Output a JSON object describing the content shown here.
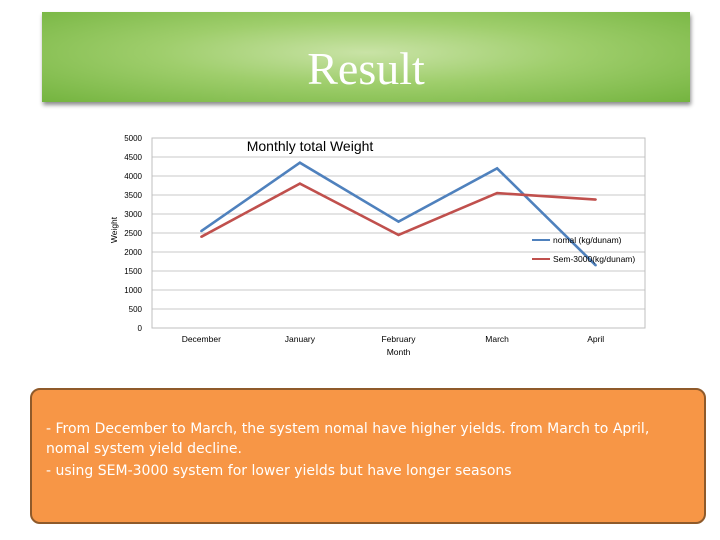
{
  "slide": {
    "title": "Result",
    "notes": [
      " - From December to March, the system nomal have higher yields. from March to April,",
      "nomal system yield decline.",
      "-  using SEM-3000 system for lower yields but have longer seasons"
    ]
  },
  "colors": {
    "banner": "#9fce6c",
    "note_box": "#f79646",
    "series_1": "#4f81bd",
    "series_2": "#c0504d"
  },
  "chart_data": {
    "type": "line",
    "title": "Monthly total Weight",
    "xlabel": "Month",
    "ylabel": "Weight",
    "categories": [
      "December",
      "January",
      "February",
      "March",
      "April"
    ],
    "ylim": [
      0,
      5000
    ],
    "yticks": [
      0,
      500,
      1000,
      1500,
      2000,
      2500,
      3000,
      3500,
      4000,
      4500,
      5000
    ],
    "grid": true,
    "legend": "right",
    "series": [
      {
        "name": "nomal (kg/dunam)",
        "color": "#4f81bd",
        "values": [
          2550,
          4350,
          2800,
          4200,
          1650
        ]
      },
      {
        "name": "Sem-3000(kg/dunam)",
        "color": "#c0504d",
        "values": [
          2400,
          3800,
          2450,
          3550,
          3380
        ]
      }
    ]
  }
}
